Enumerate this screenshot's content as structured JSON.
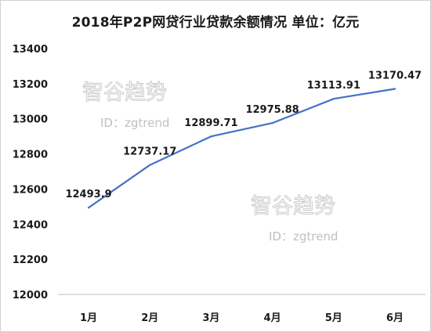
{
  "chart_data": {
    "type": "line",
    "title": "2018年P2P网贷行业贷款余额情况  单位：亿元",
    "categories": [
      "1月",
      "2月",
      "3月",
      "4月",
      "5月",
      "6月"
    ],
    "series": [
      {
        "values": [
          12493.9,
          12737.17,
          12899.71,
          12975.88,
          13113.91,
          13170.47
        ]
      }
    ],
    "data_labels": [
      "12493.9",
      "12737.17",
      "12899.71",
      "12975.88",
      "13113.91",
      "13170.47"
    ],
    "yticks": [
      12000,
      12200,
      12400,
      12600,
      12800,
      13000,
      13200,
      13400
    ],
    "ylim": [
      12000,
      13400
    ],
    "grid": false,
    "legend": "none",
    "line_color": "#4472c4"
  },
  "watermark": {
    "brand": "智谷趋势",
    "id_text": "ID：zgtrend"
  }
}
